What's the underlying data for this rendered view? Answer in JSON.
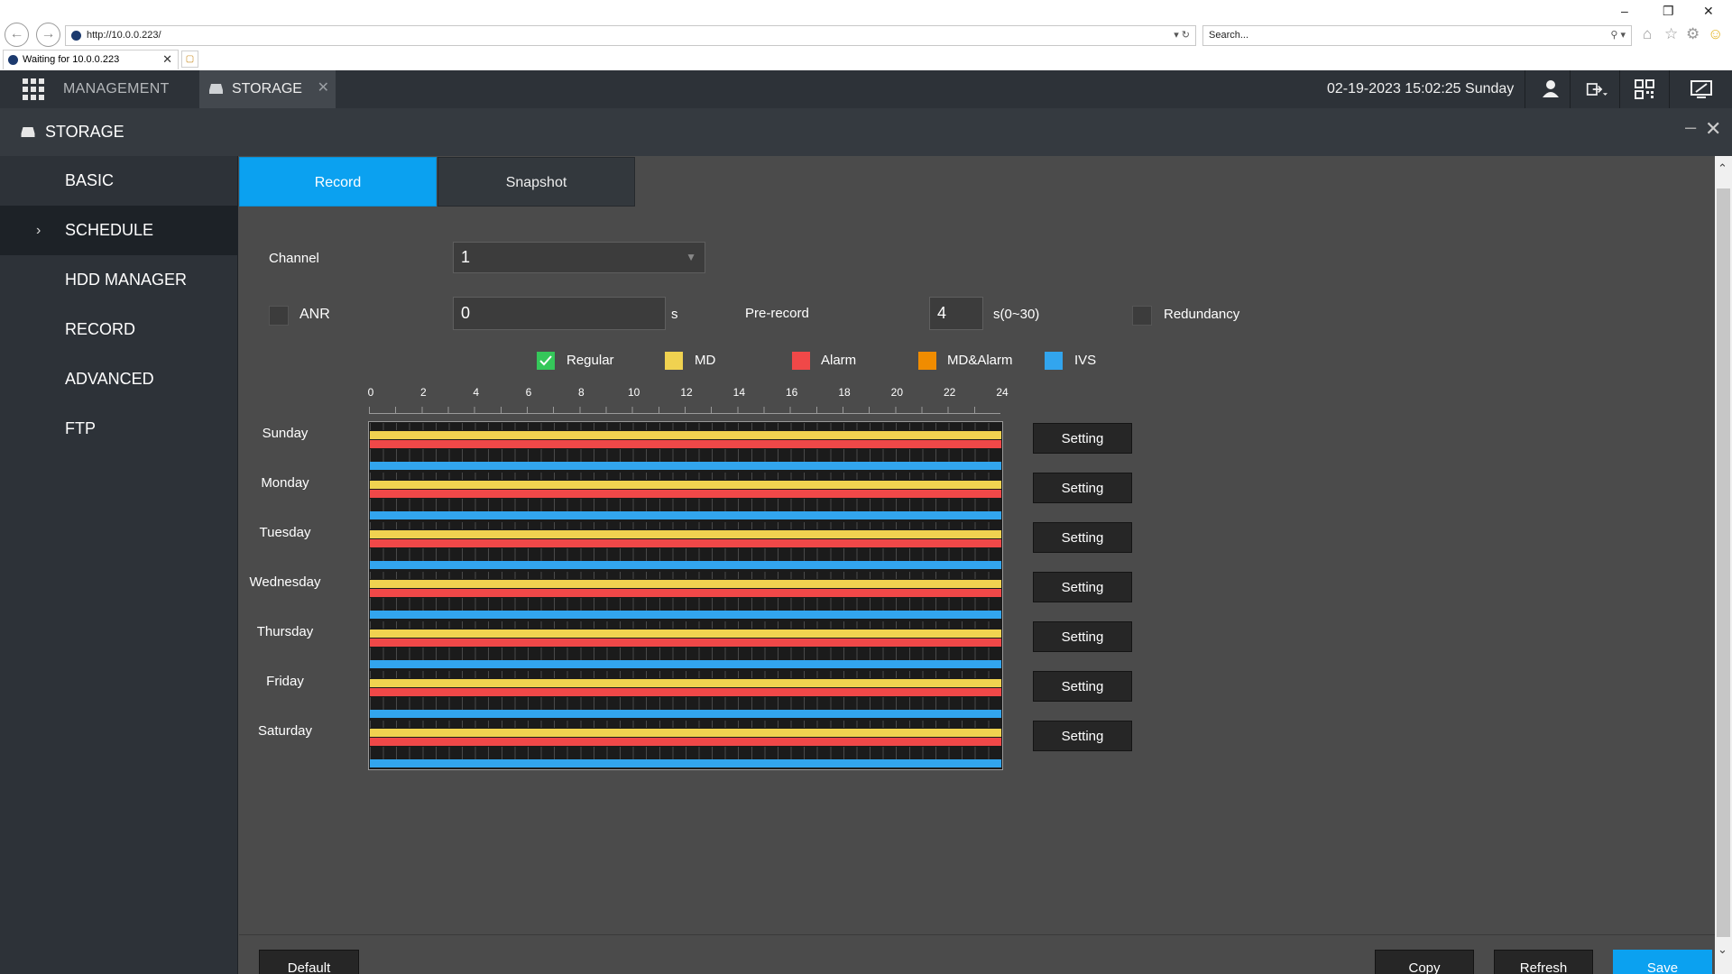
{
  "browser": {
    "url": "http://10.0.0.223/",
    "search_placeholder": "Search...",
    "tab_title": "Waiting for 10.0.0.223"
  },
  "header": {
    "app_menu": "MANAGEMENT",
    "open_tab": "STORAGE",
    "datetime": "02-19-2023 15:02:25 Sunday"
  },
  "panel": {
    "title": "STORAGE"
  },
  "sidebar": {
    "items": [
      {
        "label": "BASIC"
      },
      {
        "label": "SCHEDULE",
        "active": true
      },
      {
        "label": "HDD MANAGER"
      },
      {
        "label": "RECORD"
      },
      {
        "label": "ADVANCED"
      },
      {
        "label": "FTP"
      }
    ]
  },
  "tabs": {
    "record": "Record",
    "snapshot": "Snapshot"
  },
  "form": {
    "channel_label": "Channel",
    "channel_value": "1",
    "anr_label": "ANR",
    "anr_value": "0",
    "anr_unit": "s",
    "prerecord_label": "Pre-record",
    "prerecord_value": "4",
    "prerecord_unit": "s(0~30)",
    "redundancy_label": "Redundancy"
  },
  "legend": {
    "regular": "Regular",
    "md": "MD",
    "alarm": "Alarm",
    "md_alarm": "MD&Alarm",
    "ivs": "IVS"
  },
  "colors": {
    "regular": "#35c75a",
    "md": "#f0d250",
    "alarm": "#f04848",
    "md_alarm": "#f08c00",
    "ivs": "#32a5ee",
    "accent": "#0ba1f0"
  },
  "schedule": {
    "hours": [
      "0",
      "2",
      "4",
      "6",
      "8",
      "10",
      "12",
      "14",
      "16",
      "18",
      "20",
      "22",
      "24"
    ],
    "days": [
      "Sunday",
      "Monday",
      "Tuesday",
      "Wednesday",
      "Thursday",
      "Friday",
      "Saturday"
    ],
    "setting_label": "Setting"
  },
  "footer": {
    "default": "Default",
    "copy": "Copy",
    "refresh": "Refresh",
    "save": "Save"
  }
}
